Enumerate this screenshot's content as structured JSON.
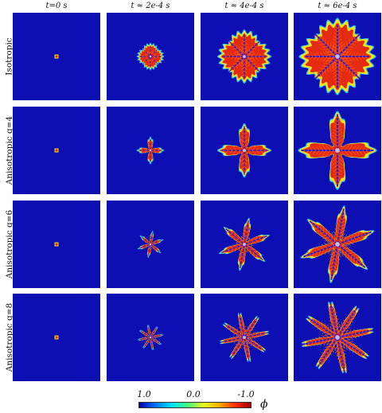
{
  "columns": [
    {
      "label": "t=0 s"
    },
    {
      "label": "t ≈ 2e-4 s"
    },
    {
      "label": "t ≈ 4e-4 s"
    },
    {
      "label": "t ≈ 6e-4 s"
    }
  ],
  "rows": [
    {
      "label": "Isotropic",
      "arms": 0,
      "stages": [
        0.04,
        0.3,
        0.62,
        0.9
      ]
    },
    {
      "label": "Anisotropic q=4",
      "arms": 4,
      "stages": [
        0.04,
        0.3,
        0.62,
        0.92
      ]
    },
    {
      "label": "Anisotropic q=6",
      "arms": 6,
      "stages": [
        0.04,
        0.3,
        0.62,
        0.92
      ]
    },
    {
      "label": "Anisotropic q=8",
      "arms": 8,
      "stages": [
        0.04,
        0.3,
        0.62,
        0.92
      ]
    }
  ],
  "colorbar": {
    "ticks": [
      "1.0",
      "0.0",
      "-1.0"
    ],
    "symbol": "ϕ",
    "colors": [
      "#0000b4",
      "#0070ff",
      "#00e0ff",
      "#40ff80",
      "#e0ff20",
      "#ffb000",
      "#ff3000",
      "#a00000"
    ]
  },
  "field_colors": {
    "background": "#0d0fb2",
    "halo": "#1fc7ff",
    "edge": "#f2e21a",
    "body": "#e52a12",
    "core": "#ff6a10"
  }
}
